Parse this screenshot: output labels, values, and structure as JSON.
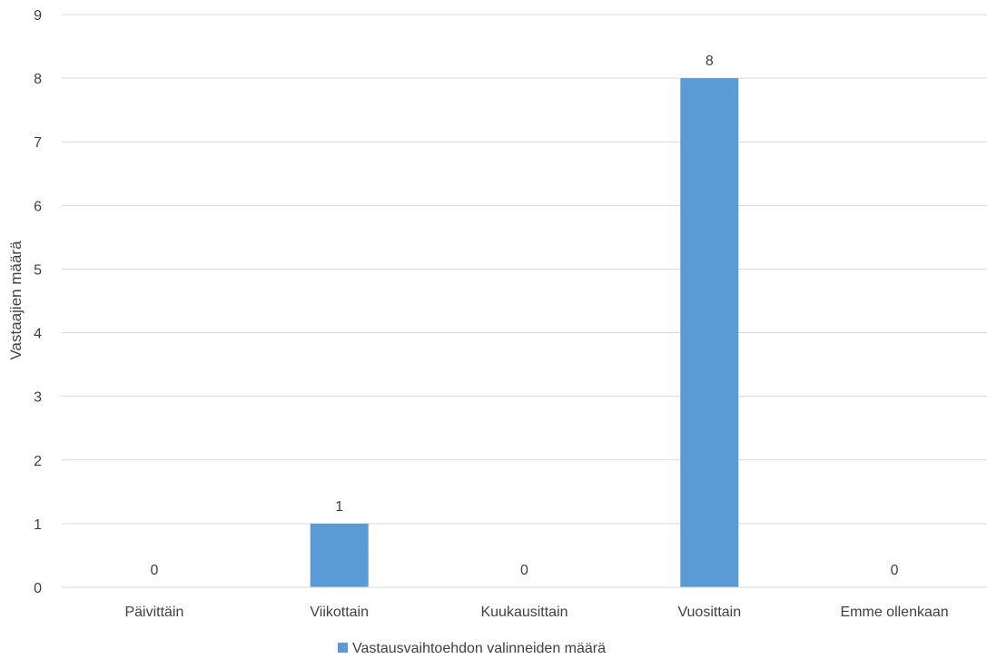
{
  "chart_data": {
    "type": "bar",
    "categories": [
      "Päivittäin",
      "Viikottain",
      "Kuukausittain",
      "Vuosittain",
      "Emme ollenkaan"
    ],
    "series": [
      {
        "name": "Vastausvaihtoehdon valinneiden määrä",
        "values": [
          0,
          1,
          0,
          8,
          0
        ],
        "color": "#5b9bd5"
      }
    ],
    "data_labels": [
      "0",
      "1",
      "0",
      "8",
      "0"
    ],
    "ylabel": "Vastaajien määrä",
    "xlabel": "",
    "ylim": [
      0,
      9
    ],
    "yticks": [
      "0",
      "1",
      "2",
      "3",
      "4",
      "5",
      "6",
      "7",
      "8",
      "9"
    ],
    "grid": true,
    "grid_color": "#d9d9d9",
    "text_color": "#404040",
    "legend": "bottom"
  }
}
